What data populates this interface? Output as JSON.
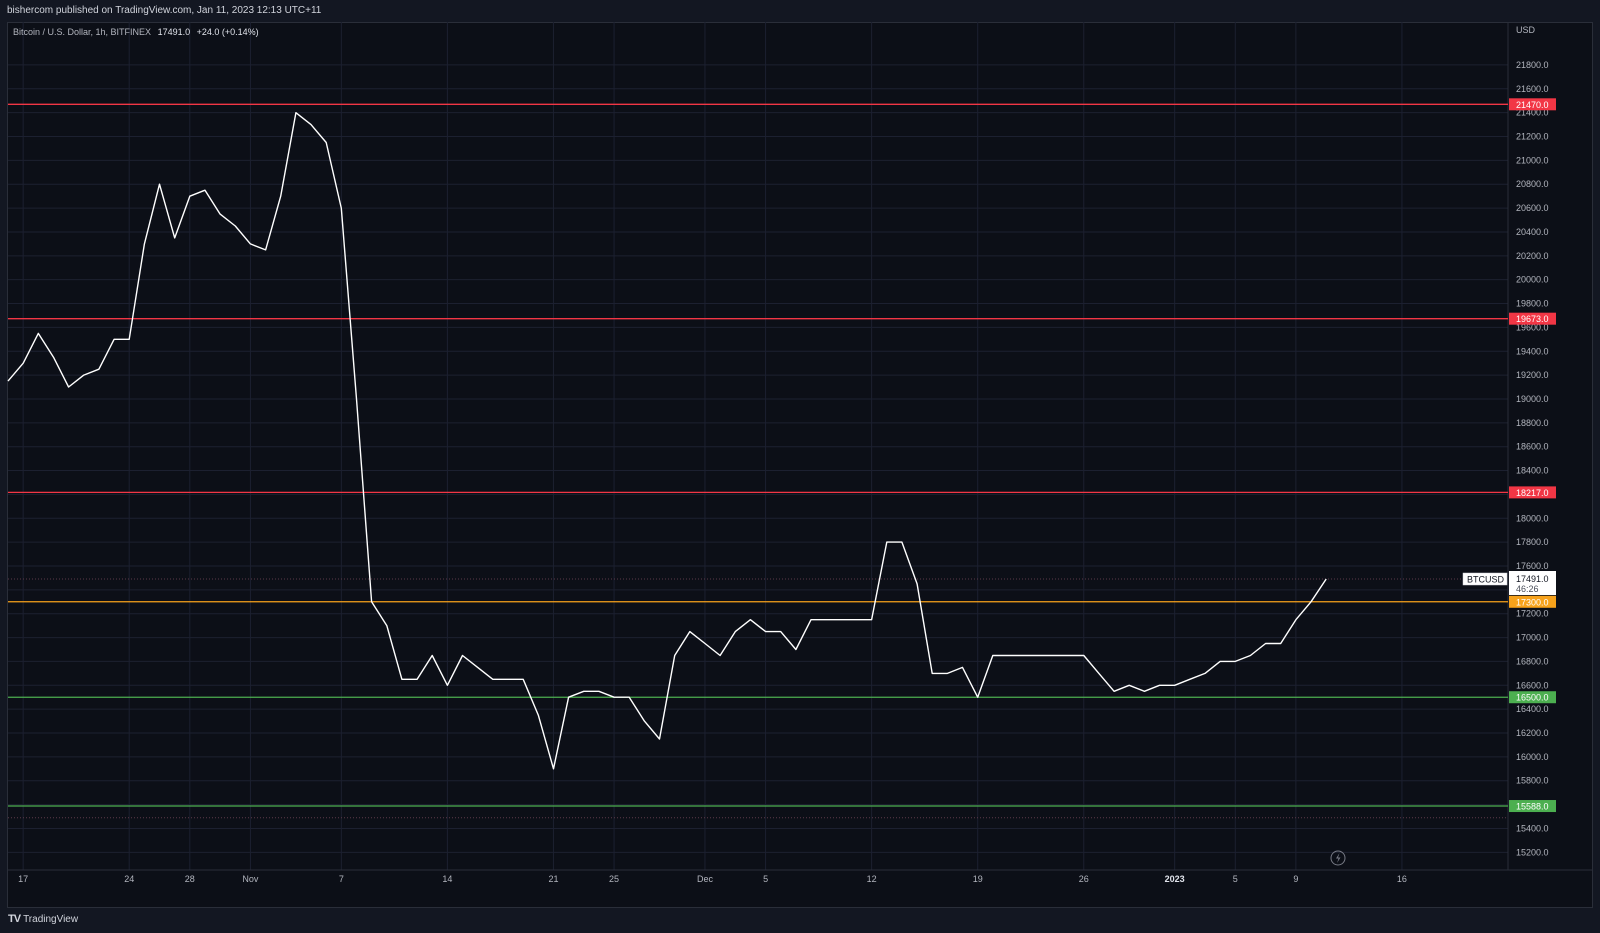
{
  "header": {
    "published_text": "bishercom published on TradingView.com, Jan 11, 2023 12:13 UTC+11"
  },
  "legend": {
    "symbol_text": "Bitcoin / U.S. Dollar, 1h, BITFINEX",
    "last_price": "17491.0",
    "change": "+24.0 (+0.14%)"
  },
  "footer": {
    "brand": "TradingView"
  },
  "colors": {
    "background": "#0c0f17",
    "price_line": "#ffffff",
    "resistance": "#f23645",
    "support": "#4caf50",
    "pivot": "#f7a21b",
    "axis_text": "#b2b5be"
  },
  "chart_data": {
    "type": "line",
    "title": "Bitcoin / U.S. Dollar, 1h, BITFINEX",
    "y_axis": {
      "label": "USD",
      "ticks": [
        "21800.0",
        "21600.0",
        "21400.0",
        "21200.0",
        "21000.0",
        "20800.0",
        "20600.0",
        "20400.0",
        "20200.0",
        "20000.0",
        "19800.0",
        "19600.0",
        "19400.0",
        "19200.0",
        "19000.0",
        "18800.0",
        "18600.0",
        "18400.0",
        "18200.0",
        "18000.0",
        "17800.0",
        "17600.0",
        "17400.0",
        "17200.0",
        "17000.0",
        "16800.0",
        "16600.0",
        "16400.0",
        "16200.0",
        "16000.0",
        "15800.0",
        "15600.0",
        "15400.0",
        "15200.0"
      ],
      "ylim": [
        15100,
        22000
      ]
    },
    "x_axis": {
      "ticks": [
        {
          "label": "17",
          "date": "2022-10-17"
        },
        {
          "label": "24",
          "date": "2022-10-24"
        },
        {
          "label": "28",
          "date": "2022-10-28"
        },
        {
          "label": "Nov",
          "date": "2022-11-01"
        },
        {
          "label": "7",
          "date": "2022-11-07"
        },
        {
          "label": "14",
          "date": "2022-11-14"
        },
        {
          "label": "21",
          "date": "2022-11-21"
        },
        {
          "label": "25",
          "date": "2022-11-25"
        },
        {
          "label": "Dec",
          "date": "2022-12-01"
        },
        {
          "label": "5",
          "date": "2022-12-05"
        },
        {
          "label": "12",
          "date": "2022-12-12"
        },
        {
          "label": "19",
          "date": "2022-12-19"
        },
        {
          "label": "26",
          "date": "2022-12-26"
        },
        {
          "label": "2023",
          "date": "2023-01-01",
          "bold": true
        },
        {
          "label": "5",
          "date": "2023-01-05"
        },
        {
          "label": "9",
          "date": "2023-01-09"
        },
        {
          "label": "16",
          "date": "2023-01-16"
        }
      ],
      "range": [
        "2022-10-16",
        "2023-01-23"
      ]
    },
    "series": [
      {
        "name": "BTCUSD",
        "x": [
          "2022-10-16",
          "2022-10-17",
          "2022-10-18",
          "2022-10-19",
          "2022-10-20",
          "2022-10-21",
          "2022-10-22",
          "2022-10-23",
          "2022-10-24",
          "2022-10-25",
          "2022-10-26",
          "2022-10-27",
          "2022-10-28",
          "2022-10-29",
          "2022-10-30",
          "2022-10-31",
          "2022-11-01",
          "2022-11-02",
          "2022-11-03",
          "2022-11-04",
          "2022-11-05",
          "2022-11-06",
          "2022-11-07",
          "2022-11-08",
          "2022-11-09",
          "2022-11-10",
          "2022-11-11",
          "2022-11-12",
          "2022-11-13",
          "2022-11-14",
          "2022-11-15",
          "2022-11-16",
          "2022-11-17",
          "2022-11-18",
          "2022-11-19",
          "2022-11-20",
          "2022-11-21",
          "2022-11-22",
          "2022-11-23",
          "2022-11-24",
          "2022-11-25",
          "2022-11-26",
          "2022-11-27",
          "2022-11-28",
          "2022-11-29",
          "2022-11-30",
          "2022-12-01",
          "2022-12-02",
          "2022-12-03",
          "2022-12-04",
          "2022-12-05",
          "2022-12-06",
          "2022-12-07",
          "2022-12-08",
          "2022-12-09",
          "2022-12-10",
          "2022-12-11",
          "2022-12-12",
          "2022-12-13",
          "2022-12-14",
          "2022-12-15",
          "2022-12-16",
          "2022-12-17",
          "2022-12-18",
          "2022-12-19",
          "2022-12-20",
          "2022-12-21",
          "2022-12-22",
          "2022-12-23",
          "2022-12-24",
          "2022-12-25",
          "2022-12-26",
          "2022-12-27",
          "2022-12-28",
          "2022-12-29",
          "2022-12-30",
          "2022-12-31",
          "2023-01-01",
          "2023-01-02",
          "2023-01-03",
          "2023-01-04",
          "2023-01-05",
          "2023-01-06",
          "2023-01-07",
          "2023-01-08",
          "2023-01-09",
          "2023-01-10",
          "2023-01-11"
        ],
        "values": [
          19150,
          19300,
          19550,
          19350,
          19100,
          19200,
          19250,
          19500,
          19500,
          20300,
          20800,
          20350,
          20700,
          20750,
          20550,
          20450,
          20300,
          20250,
          20700,
          21400,
          21300,
          21150,
          20600,
          19000,
          17300,
          17100,
          16650,
          16650,
          16850,
          16600,
          16850,
          16750,
          16650,
          16650,
          16650,
          16350,
          15900,
          16500,
          16550,
          16550,
          16500,
          16500,
          16300,
          16150,
          16850,
          17050,
          16950,
          16850,
          17050,
          17150,
          17050,
          17050,
          16900,
          17150,
          17150,
          17150,
          17150,
          17150,
          17800,
          17800,
          17450,
          16700,
          16700,
          16750,
          16500,
          16850,
          16850,
          16850,
          16850,
          16850,
          16850,
          16850,
          16700,
          16550,
          16600,
          16550,
          16600,
          16600,
          16650,
          16700,
          16800,
          16800,
          16850,
          16950,
          16950,
          17150,
          17300,
          17491
        ]
      }
    ],
    "horizontal_levels": [
      {
        "value": "21470.0",
        "role": "resistance",
        "color": "#f23645"
      },
      {
        "value": "19673.0",
        "role": "resistance",
        "color": "#f23645"
      },
      {
        "value": "18217.0",
        "role": "resistance",
        "color": "#f23645"
      },
      {
        "value": "17300.0",
        "role": "pivot",
        "color": "#f7a21b"
      },
      {
        "value": "16500.0",
        "role": "support",
        "color": "#4caf50"
      },
      {
        "value": "15588.0",
        "role": "support",
        "color": "#4caf50"
      }
    ],
    "last_price_label": {
      "symbol": "BTCUSD",
      "price": "17491.0",
      "countdown": "46:26"
    },
    "legend_placement": "top-left",
    "grid": true
  }
}
